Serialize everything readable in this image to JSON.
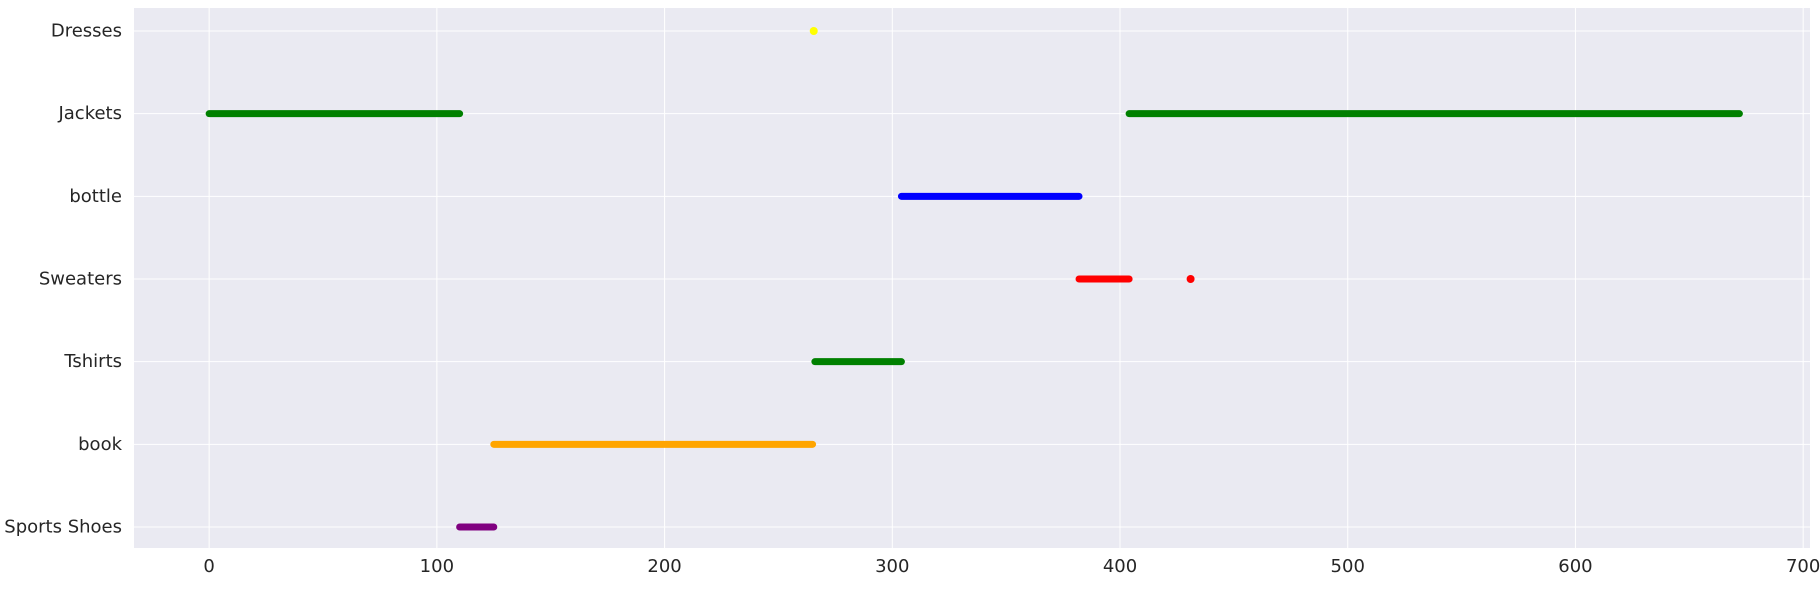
{
  "chart_data": {
    "type": "scatter",
    "title": "",
    "xlabel": "",
    "ylabel": "",
    "xlim": [
      -33,
      703
    ],
    "xticks": [
      0,
      100,
      200,
      300,
      400,
      500,
      600,
      700
    ],
    "xtick_labels": [
      "0",
      "100",
      "200",
      "300",
      "400",
      "500",
      "600",
      "700"
    ],
    "categories": [
      "Sports Shoes",
      "book",
      "Tshirts",
      "Sweaters",
      "bottle",
      "Jackets",
      "Dresses"
    ],
    "grid": true,
    "style": {
      "background": "#eaeaf2",
      "grid_color": "#ffffff"
    },
    "series": [
      {
        "category": "Sports Shoes",
        "color": "#800080",
        "x_start": 110,
        "x_end": 125
      },
      {
        "category": "book",
        "color": "#ffa500",
        "x_start": 125,
        "x_end": 265
      },
      {
        "category": "Dresses",
        "color": "#ffff00",
        "x_start": 265,
        "x_end": 266
      },
      {
        "category": "Tshirts",
        "color": "#008000",
        "x_start": 266,
        "x_end": 304
      },
      {
        "category": "bottle",
        "color": "#0000ff",
        "x_start": 304,
        "x_end": 382
      },
      {
        "category": "Sweaters",
        "color": "#ff0000",
        "x_start": 382,
        "x_end": 404
      },
      {
        "category": "Jackets",
        "color": "#008000",
        "x_start": 0,
        "x_end": 110
      },
      {
        "category": "Jackets",
        "color": "#008000",
        "x_start": 404,
        "x_end": 672
      },
      {
        "category": "Sweaters",
        "color": "#ff0000",
        "x_start": 431,
        "x_end": 431
      }
    ]
  }
}
